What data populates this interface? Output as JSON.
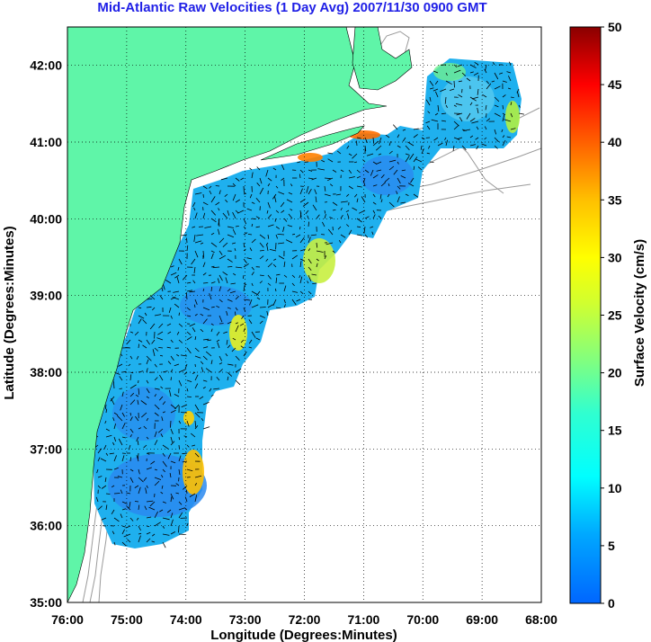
{
  "title": "Mid-Atlantic Raw Velocities (1 Day Avg) 2007/11/30 0900 GMT",
  "x_axis": {
    "label": "Longitude (Degrees:Minutes)",
    "ticks": [
      "76:00",
      "75:00",
      "74:00",
      "73:00",
      "72:00",
      "71:00",
      "70:00",
      "69:00",
      "68:00"
    ]
  },
  "y_axis": {
    "label": "Latitude (Degrees:Minutes)",
    "ticks": [
      "35:00",
      "36:00",
      "37:00",
      "38:00",
      "39:00",
      "40:00",
      "41:00",
      "42:00"
    ]
  },
  "colorbar": {
    "label": "Surface Velocity (cm/s)",
    "ticks": [
      "0",
      "5",
      "10",
      "15",
      "20",
      "25",
      "30",
      "35",
      "40",
      "45",
      "50"
    ],
    "range": [
      0,
      50
    ]
  },
  "colors": {
    "land": "#5ff5a8",
    "title": "#1f1fe6",
    "grid": "#000000",
    "bathymetry": "#9a9a9a"
  },
  "map_extent": {
    "lon": [
      -76,
      -68
    ],
    "lat": [
      35,
      42.5
    ]
  }
}
